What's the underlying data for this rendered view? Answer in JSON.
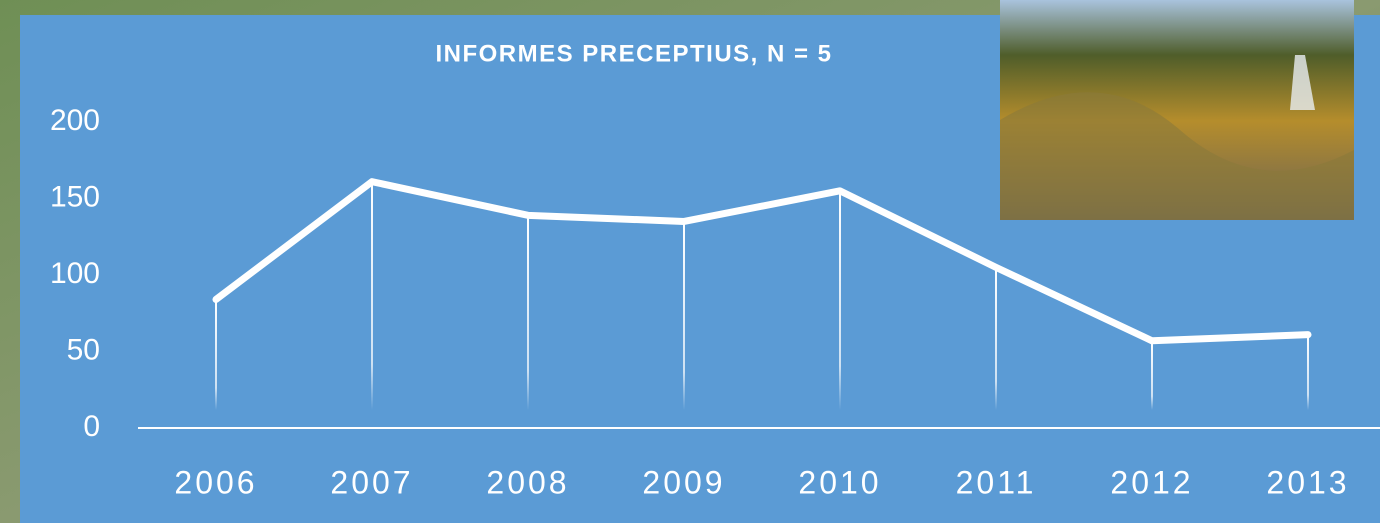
{
  "chart_data": {
    "type": "line",
    "title": "INFORMES PRECEPTIUS, N = 5",
    "categories": [
      "2006",
      "2007",
      "2008",
      "2009",
      "2010",
      "2011",
      "2012",
      "2013"
    ],
    "values": [
      84,
      161,
      139,
      135,
      155,
      105,
      57,
      61
    ],
    "color": "#ffffff",
    "ylim": [
      0,
      200
    ],
    "yticks": [
      0,
      50,
      100,
      150,
      200
    ],
    "drop_lines": true
  }
}
